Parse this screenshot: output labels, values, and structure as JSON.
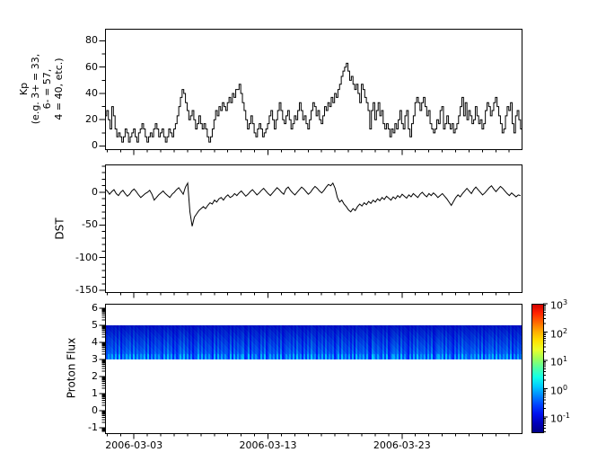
{
  "figure": {
    "background": "#ffffff",
    "line_color": "#000000",
    "frame_color": "#000000"
  },
  "x_axis": {
    "tick_labels": [
      "2006-03-03",
      "2006-03-13",
      "2006-03-23"
    ],
    "minor_tick_interval": "1 day",
    "span_days": 31
  },
  "chart_data": [
    {
      "type": "line",
      "line_style": "steps-post",
      "series_name": "Kp",
      "ylabel": "Kp\n(e.g. 3+ = 33,\n6- = 57,\n4 = 40, etc.)",
      "ylim": [
        -2.4,
        89.2
      ],
      "yticks": [
        0,
        20,
        40,
        60,
        80
      ],
      "minor_ytick_step": 10,
      "x_step_days": 0.125,
      "line_color": "#000000",
      "values": [
        23,
        27,
        20,
        13,
        30,
        23,
        13,
        7,
        10,
        7,
        3,
        7,
        13,
        10,
        3,
        7,
        10,
        13,
        7,
        3,
        10,
        13,
        17,
        13,
        7,
        3,
        7,
        10,
        7,
        13,
        17,
        13,
        7,
        10,
        13,
        7,
        3,
        7,
        13,
        10,
        7,
        13,
        17,
        23,
        30,
        37,
        43,
        40,
        33,
        27,
        20,
        23,
        27,
        20,
        13,
        17,
        23,
        17,
        13,
        17,
        13,
        7,
        3,
        7,
        13,
        20,
        27,
        23,
        30,
        27,
        33,
        30,
        27,
        33,
        37,
        33,
        40,
        37,
        43,
        43,
        47,
        40,
        33,
        27,
        20,
        13,
        17,
        23,
        17,
        10,
        7,
        13,
        17,
        13,
        7,
        10,
        13,
        17,
        23,
        27,
        20,
        13,
        20,
        27,
        33,
        27,
        20,
        17,
        23,
        27,
        20,
        13,
        17,
        23,
        20,
        27,
        33,
        27,
        20,
        23,
        17,
        13,
        20,
        27,
        33,
        30,
        23,
        27,
        20,
        17,
        23,
        30,
        27,
        33,
        30,
        37,
        33,
        40,
        37,
        43,
        47,
        53,
        57,
        60,
        63,
        57,
        50,
        53,
        47,
        43,
        47,
        40,
        33,
        47,
        43,
        37,
        33,
        27,
        13,
        27,
        33,
        20,
        27,
        33,
        23,
        27,
        17,
        13,
        17,
        13,
        7,
        13,
        10,
        17,
        13,
        20,
        27,
        17,
        13,
        23,
        27,
        13,
        7,
        17,
        23,
        33,
        37,
        33,
        27,
        33,
        37,
        30,
        23,
        27,
        17,
        13,
        10,
        13,
        20,
        17,
        27,
        30,
        13,
        17,
        23,
        17,
        13,
        17,
        10,
        13,
        17,
        23,
        30,
        37,
        23,
        33,
        20,
        27,
        23,
        17,
        20,
        30,
        23,
        17,
        20,
        13,
        17,
        27,
        33,
        30,
        23,
        27,
        33,
        37,
        30,
        23,
        17,
        10,
        13,
        23,
        30,
        27,
        33,
        17,
        10,
        23,
        27,
        20,
        13
      ]
    },
    {
      "type": "line",
      "line_style": "linear",
      "series_name": "DST",
      "ylabel": "DST",
      "ylim": [
        -152.7,
        42.6
      ],
      "yticks": [
        0,
        -50,
        -100,
        -150
      ],
      "minor_ytick_step": 10,
      "x_step_days": 0.16667,
      "line_color": "#000000",
      "values": [
        5,
        2,
        -3,
        1,
        4,
        -2,
        -5,
        0,
        3,
        -2,
        -6,
        -3,
        2,
        5,
        1,
        -4,
        -8,
        -5,
        -2,
        0,
        3,
        -3,
        -12,
        -8,
        -4,
        -1,
        2,
        -2,
        -5,
        -8,
        -3,
        0,
        4,
        7,
        2,
        -3,
        8,
        14,
        -30,
        -52,
        -38,
        -33,
        -28,
        -25,
        -22,
        -25,
        -20,
        -16,
        -18,
        -12,
        -15,
        -10,
        -8,
        -12,
        -7,
        -4,
        -8,
        -6,
        -2,
        -5,
        -1,
        2,
        -2,
        -6,
        -3,
        1,
        4,
        0,
        -4,
        -1,
        3,
        6,
        2,
        -2,
        -5,
        -1,
        3,
        7,
        4,
        0,
        -3,
        5,
        8,
        3,
        -1,
        -4,
        0,
        4,
        8,
        5,
        1,
        -3,
        0,
        5,
        9,
        6,
        2,
        -1,
        3,
        8,
        12,
        10,
        14,
        6,
        -8,
        -15,
        -12,
        -18,
        -22,
        -27,
        -30,
        -25,
        -28,
        -22,
        -18,
        -21,
        -16,
        -19,
        -14,
        -17,
        -12,
        -15,
        -10,
        -13,
        -8,
        -11,
        -6,
        -9,
        -12,
        -7,
        -10,
        -5,
        -8,
        -3,
        -6,
        -9,
        -4,
        -7,
        -2,
        -5,
        -8,
        -3,
        0,
        -4,
        -7,
        -2,
        -5,
        -1,
        -4,
        -8,
        -5,
        -2,
        -6,
        -10,
        -15,
        -20,
        -14,
        -8,
        -4,
        -7,
        -2,
        2,
        6,
        2,
        -2,
        4,
        8,
        4,
        0,
        -4,
        -1,
        3,
        7,
        10,
        5,
        1,
        5,
        9,
        6,
        2,
        -2,
        -5,
        -1,
        -4,
        -7,
        -4,
        -5
      ]
    },
    {
      "type": "heatmap",
      "series_name": "Proton Flux",
      "ylabel": "Proton Flux",
      "ylim": [
        -1.32,
        6.26
      ],
      "yticks": [
        6,
        5,
        4,
        3,
        2,
        1,
        0,
        -1
      ],
      "log_minor_yticks": true,
      "band": {
        "y_min": 3,
        "y_max": 5
      },
      "value_scale": "log10",
      "value_range_exponents": [
        -1.54,
        3
      ],
      "dominant_color": "#0011dd",
      "stripe_pattern": "4657382916475829374658291637465283947162584937261549382746519283746529183746823917465283915746382914657382946172839561748293647158294637281946573821964753829146758293641728394657283914675829364172839465",
      "colorbar": {
        "scale": "log",
        "exponents": [
          3,
          2,
          1,
          0,
          -1
        ],
        "colormap": "jet",
        "stops_top_to_bottom": [
          "#cc0000",
          "#ff2200",
          "#ff6600",
          "#ffaa00",
          "#ffe000",
          "#eaff2a",
          "#9dff5a",
          "#52ffa5",
          "#12ffe8",
          "#00ccff",
          "#0088ff",
          "#0044ff",
          "#0011ee",
          "#0000bb",
          "#000088"
        ]
      }
    }
  ]
}
